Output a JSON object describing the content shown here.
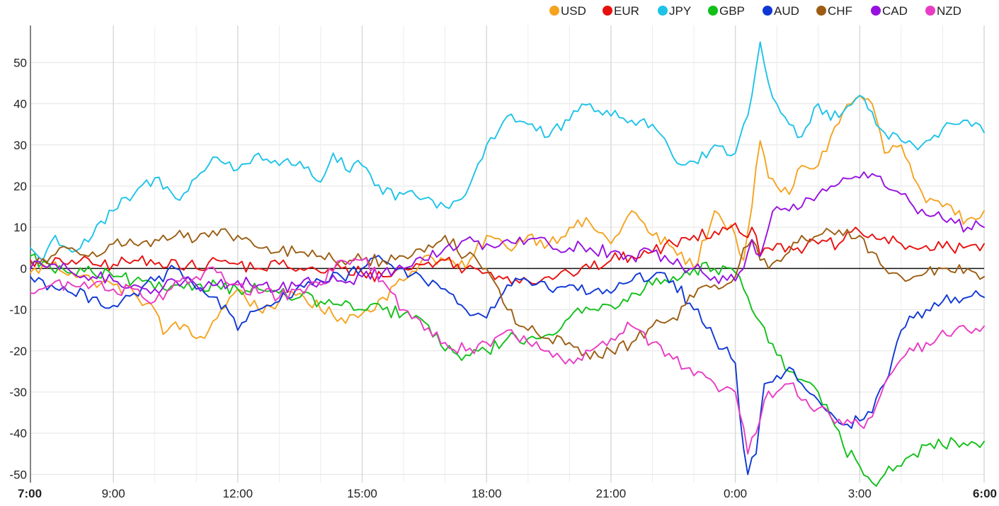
{
  "chart_data": {
    "type": "line",
    "title": "",
    "xlabel": "",
    "ylabel": "",
    "ylim": [
      -52,
      59
    ],
    "xlim": [
      0,
      23
    ],
    "grid": true,
    "legend_position": "top-right",
    "zero_line": true,
    "x_ticks": [
      {
        "value": 0,
        "label": "7:00",
        "bold": true
      },
      {
        "value": 2,
        "label": "9:00",
        "bold": false
      },
      {
        "value": 5,
        "label": "12:00",
        "bold": false
      },
      {
        "value": 8,
        "label": "15:00",
        "bold": false
      },
      {
        "value": 11,
        "label": "18:00",
        "bold": false
      },
      {
        "value": 14,
        "label": "21:00",
        "bold": false
      },
      {
        "value": 17,
        "label": "0:00",
        "bold": false
      },
      {
        "value": 20,
        "label": "3:00",
        "bold": false
      },
      {
        "value": 23,
        "label": "6:00",
        "bold": true
      }
    ],
    "y_ticks": [
      -50,
      -40,
      -30,
      -20,
      -10,
      0,
      10,
      20,
      30,
      40,
      50
    ],
    "x_minor_ticks": [
      3,
      4,
      6,
      7,
      9,
      10,
      12,
      13,
      15,
      16,
      18,
      19,
      21,
      22
    ],
    "series": [
      {
        "name": "USD",
        "color": "#f5a31f",
        "x": [
          0,
          0.5,
          1,
          1.5,
          2,
          2.5,
          3,
          3.2,
          3.5,
          4,
          4.3,
          4.6,
          5,
          5.5,
          6,
          6.5,
          7,
          7.5,
          8,
          8.5,
          9,
          9.5,
          10,
          10.5,
          11,
          11.5,
          12,
          12.5,
          13,
          13.5,
          14,
          14.5,
          15,
          15.5,
          16,
          16.5,
          17,
          17.2,
          17.4,
          17.6,
          17.8,
          18,
          18.3,
          18.6,
          19,
          19.3,
          19.6,
          20,
          20.3,
          20.6,
          21,
          21.3,
          21.6,
          22,
          22.3,
          22.6,
          23
        ],
        "y": [
          -1,
          1,
          -1,
          -3,
          -4,
          -6,
          -10,
          -16,
          -13,
          -17,
          -15,
          -10,
          -5,
          -10,
          -8,
          -6,
          -10,
          -12,
          -11,
          -7,
          -3,
          3,
          2,
          0,
          8,
          5,
          8,
          6,
          10,
          11,
          6,
          14,
          8,
          5,
          0,
          14,
          8,
          2,
          15,
          31,
          22,
          20,
          18,
          25,
          25,
          32,
          38,
          42,
          40,
          28,
          30,
          22,
          16,
          15,
          13,
          12,
          14
        ]
      },
      {
        "name": "EUR",
        "color": "#e8100e",
        "x": [
          0,
          0.5,
          1,
          1.5,
          2,
          2.5,
          3,
          3.5,
          4,
          4.5,
          5,
          5.5,
          6,
          6.5,
          7,
          7.5,
          8,
          8.5,
          9,
          9.5,
          10,
          10.5,
          11,
          11.5,
          12,
          12.5,
          13,
          13.5,
          14,
          14.5,
          15,
          15.5,
          16,
          16.5,
          17,
          17.2,
          17.4,
          17.6,
          17.8,
          18,
          18.5,
          19,
          19.5,
          20,
          20.5,
          21,
          21.5,
          22,
          22.5,
          23
        ],
        "y": [
          2,
          1,
          2,
          1,
          1,
          2,
          1,
          2,
          0,
          2,
          1,
          0,
          1,
          0,
          -1,
          0,
          -1,
          -2,
          0,
          1,
          2,
          0,
          -1,
          -2,
          -3,
          -2,
          -1,
          0,
          2,
          3,
          4,
          6,
          8,
          9,
          11,
          8,
          10,
          3,
          5,
          6,
          5,
          6,
          6,
          9,
          7,
          6,
          5,
          5,
          5,
          6
        ]
      },
      {
        "name": "JPY",
        "color": "#1ec3e8",
        "x": [
          0,
          0.3,
          0.6,
          1,
          1.5,
          2,
          2.5,
          3,
          3.5,
          4,
          4.5,
          5,
          5.5,
          6,
          6.5,
          7,
          7.3,
          7.6,
          8,
          8.5,
          9,
          9.5,
          10,
          10.5,
          11,
          11.5,
          12,
          12.5,
          13,
          13.5,
          14,
          14.5,
          15,
          15.5,
          16,
          16.5,
          17,
          17.2,
          17.4,
          17.6,
          17.8,
          18,
          18.3,
          18.6,
          19,
          19.3,
          19.6,
          20,
          20.3,
          20.6,
          21,
          21.3,
          21.6,
          22,
          22.3,
          22.6,
          23
        ],
        "y": [
          5,
          2,
          8,
          4,
          8,
          14,
          18,
          22,
          17,
          22,
          27,
          24,
          28,
          25,
          26,
          21,
          28,
          24,
          25,
          18,
          18,
          17,
          15,
          18,
          30,
          37,
          35,
          32,
          36,
          40,
          37,
          36,
          35,
          27,
          26,
          30,
          28,
          35,
          42,
          55,
          45,
          40,
          35,
          32,
          40,
          36,
          38,
          42,
          38,
          33,
          31,
          30,
          31,
          34,
          35,
          36,
          33
        ]
      },
      {
        "name": "GBP",
        "color": "#12c01a",
        "x": [
          0,
          0.5,
          1,
          1.5,
          2,
          2.5,
          3,
          3.5,
          4,
          4.5,
          5,
          5.5,
          6,
          6.5,
          7,
          7.5,
          8,
          8.5,
          9,
          9.5,
          10,
          10.5,
          11,
          11.5,
          12,
          12.5,
          13,
          13.5,
          14,
          14.5,
          15,
          15.5,
          16,
          16.5,
          17,
          17.2,
          17.4,
          17.6,
          17.8,
          18,
          18.3,
          18.6,
          19,
          19.3,
          19.6,
          20,
          20.3,
          20.6,
          21,
          21.3,
          21.6,
          22,
          22.3,
          22.6,
          23
        ],
        "y": [
          3,
          0,
          -1,
          -1,
          -2,
          -3,
          -5,
          -4,
          -4,
          -4,
          -5,
          -5,
          -6,
          -7,
          -8,
          -9,
          -10,
          -10,
          -11,
          -13,
          -20,
          -21,
          -20,
          -17,
          -17,
          -16,
          -12,
          -10,
          -9,
          -6,
          -4,
          -2,
          0,
          0,
          -1,
          -5,
          -10,
          -13,
          -18,
          -21,
          -25,
          -27,
          -30,
          -36,
          -43,
          -48,
          -52,
          -50,
          -48,
          -45,
          -43,
          -43,
          -42,
          -43,
          -42
        ]
      },
      {
        "name": "AUD",
        "color": "#0f37d6",
        "x": [
          0,
          0.5,
          1,
          1.5,
          2,
          2.5,
          3,
          3.5,
          4,
          4.5,
          5,
          5.5,
          6,
          6.5,
          7,
          7.5,
          8,
          8.5,
          9,
          9.5,
          10,
          10.5,
          11,
          11.5,
          12,
          12.5,
          13,
          13.5,
          14,
          14.5,
          15,
          15.5,
          16,
          16.5,
          17,
          17.1,
          17.3,
          17.5,
          17.7,
          18,
          18.3,
          18.6,
          19,
          19.3,
          19.6,
          20,
          20.3,
          20.6,
          21,
          21.3,
          21.6,
          22,
          22.3,
          22.6,
          23
        ],
        "y": [
          -2,
          -4,
          -6,
          -7,
          -9,
          -6,
          -3,
          0,
          -5,
          -7,
          -15,
          -10,
          -8,
          -4,
          -3,
          -2,
          0,
          2,
          0,
          -3,
          -5,
          -10,
          -12,
          -4,
          -3,
          -5,
          -4,
          -6,
          -6,
          -3,
          -2,
          -3,
          -10,
          -17,
          -23,
          -35,
          -50,
          -45,
          -28,
          -26,
          -24,
          -28,
          -32,
          -35,
          -38,
          -37,
          -35,
          -28,
          -15,
          -12,
          -10,
          -8,
          -7,
          -7,
          -7
        ]
      },
      {
        "name": "CHF",
        "color": "#9c5d12",
        "x": [
          0,
          0.5,
          1,
          1.5,
          2,
          2.5,
          3,
          3.5,
          4,
          4.5,
          5,
          5.5,
          6,
          6.5,
          7,
          7.5,
          8,
          8.5,
          9,
          9.5,
          10,
          10.5,
          11,
          11.5,
          12,
          12.5,
          13,
          13.5,
          14,
          14.5,
          15,
          15.5,
          16,
          16.5,
          17,
          17.2,
          17.4,
          17.6,
          17.8,
          18,
          18.3,
          18.6,
          19,
          19.3,
          19.6,
          20,
          20.3,
          20.6,
          21,
          21.3,
          21.6,
          22,
          22.3,
          22.6,
          23
        ],
        "y": [
          1,
          3,
          5,
          4,
          6,
          6,
          7,
          8,
          7,
          8,
          8,
          5,
          4,
          4,
          3,
          2,
          2,
          2,
          3,
          4,
          8,
          3,
          0,
          -10,
          -15,
          -17,
          -18,
          -22,
          -20,
          -18,
          -14,
          -12,
          -7,
          -4,
          -2,
          5,
          7,
          2,
          0,
          2,
          4,
          8,
          8,
          9,
          8,
          8,
          4,
          0,
          -2,
          -2,
          -1,
          0,
          -1,
          0,
          -2
        ]
      },
      {
        "name": "CAD",
        "color": "#9710e0",
        "x": [
          0,
          0.5,
          1,
          1.5,
          2,
          2.5,
          3,
          3.5,
          4,
          4.5,
          5,
          5.5,
          6,
          6.5,
          7,
          7.5,
          8,
          8.5,
          9,
          9.5,
          10,
          10.5,
          11,
          11.5,
          12,
          12.5,
          13,
          13.5,
          14,
          14.5,
          15,
          15.5,
          16,
          16.5,
          17,
          17.2,
          17.4,
          17.6,
          17.8,
          18,
          18.3,
          18.6,
          19,
          19.3,
          19.6,
          20,
          20.3,
          20.6,
          21,
          21.3,
          21.6,
          22,
          22.3,
          22.6,
          23
        ],
        "y": [
          0,
          1,
          -1,
          -2,
          -3,
          -4,
          -5,
          -3,
          -4,
          -4,
          -3,
          -4,
          -5,
          -4,
          -3,
          -3,
          -2,
          -1,
          0,
          2,
          5,
          7,
          6,
          7,
          7,
          6,
          5,
          5,
          4,
          3,
          4,
          1,
          0,
          -2,
          -3,
          0,
          7,
          3,
          10,
          15,
          14,
          15,
          18,
          20,
          22,
          22,
          23,
          20,
          18,
          15,
          13,
          12,
          11,
          10,
          10
        ]
      },
      {
        "name": "NZD",
        "color": "#e93bc4",
        "x": [
          0,
          0.5,
          1,
          1.5,
          2,
          2.5,
          3,
          3.5,
          4,
          4.5,
          5,
          5.5,
          6,
          6.5,
          7,
          7.5,
          8,
          8.5,
          9,
          9.5,
          10,
          10.5,
          11,
          11.5,
          12,
          12.5,
          13,
          13.5,
          14,
          14.5,
          15,
          15.5,
          16,
          16.5,
          17,
          17.1,
          17.3,
          17.5,
          17.7,
          18,
          18.3,
          18.6,
          19,
          19.3,
          19.6,
          20,
          20.3,
          20.6,
          21,
          21.3,
          21.6,
          22,
          22.3,
          22.6,
          23
        ],
        "y": [
          -6,
          -4,
          -4,
          -4,
          -5,
          -5,
          -8,
          -3,
          -2,
          -1,
          -4,
          -6,
          -7,
          -5,
          -4,
          2,
          2,
          -3,
          -10,
          -15,
          -18,
          -20,
          -18,
          -15,
          -18,
          -20,
          -22,
          -20,
          -17,
          -14,
          -18,
          -22,
          -26,
          -28,
          -30,
          -35,
          -45,
          -40,
          -32,
          -30,
          -28,
          -32,
          -34,
          -36,
          -38,
          -38,
          -36,
          -28,
          -22,
          -20,
          -18,
          -15,
          -15,
          -15,
          -14
        ]
      }
    ]
  }
}
